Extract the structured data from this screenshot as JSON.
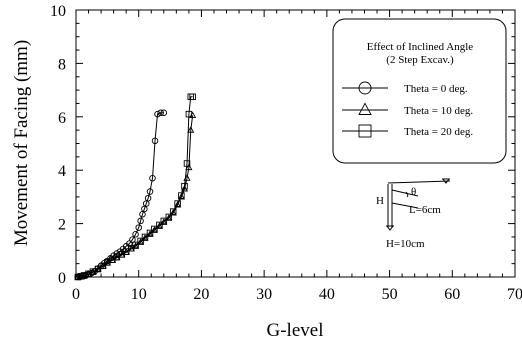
{
  "chart_data": {
    "type": "line",
    "xlabel": "G-level",
    "ylabel": "Movement of Facing (mm)",
    "xlim": [
      0,
      70
    ],
    "ylim": [
      0,
      10
    ],
    "xticks": [
      "0",
      "10",
      "20",
      "30",
      "40",
      "50",
      "60",
      "70"
    ],
    "yticks": [
      "0",
      "2",
      "4",
      "6",
      "8",
      "10"
    ],
    "legend": {
      "title_line1": "Effect of Inclined Angle",
      "title_line2": "(2 Step Excav.)",
      "position": "top-right"
    },
    "series": [
      {
        "name": "Theta = 0 deg.",
        "marker": "circle",
        "x": [
          0.3,
          0.6,
          0.9,
          1.2,
          1.5,
          2.0,
          2.5,
          3.0,
          3.5,
          4.0,
          4.5,
          5.0,
          5.5,
          6.0,
          6.5,
          7.0,
          7.5,
          8.0,
          8.5,
          9.0,
          9.5,
          10.0,
          10.3,
          10.6,
          10.9,
          11.2,
          11.5,
          11.8,
          12.2,
          12.6,
          13.0,
          13.5,
          14.0
        ],
        "y": [
          0.0,
          0.0,
          0.02,
          0.03,
          0.05,
          0.1,
          0.15,
          0.22,
          0.32,
          0.42,
          0.52,
          0.6,
          0.7,
          0.8,
          0.88,
          0.95,
          1.05,
          1.15,
          1.25,
          1.4,
          1.6,
          1.85,
          2.1,
          2.35,
          2.55,
          2.75,
          2.95,
          3.2,
          3.7,
          5.1,
          6.1,
          6.15,
          6.15
        ]
      },
      {
        "name": "Theta = 10 deg.",
        "marker": "triangle",
        "x": [
          0.3,
          0.8,
          1.3,
          2.0,
          2.7,
          3.5,
          4.3,
          5.0,
          5.8,
          6.5,
          7.3,
          8.0,
          8.8,
          9.5,
          10.3,
          11.0,
          11.8,
          12.5,
          13.3,
          14.0,
          14.8,
          15.5,
          16.2,
          16.8,
          17.3,
          17.7,
          18.0,
          18.3,
          18.6
        ],
        "y": [
          0.0,
          0.02,
          0.05,
          0.1,
          0.18,
          0.28,
          0.4,
          0.52,
          0.62,
          0.72,
          0.82,
          0.92,
          1.05,
          1.15,
          1.3,
          1.45,
          1.6,
          1.75,
          1.9,
          2.05,
          2.2,
          2.4,
          2.7,
          3.0,
          3.3,
          3.7,
          4.1,
          5.5,
          6.05
        ]
      },
      {
        "name": "Theta = 20 deg.",
        "marker": "square",
        "x": [
          0.3,
          0.8,
          1.3,
          2.0,
          2.7,
          3.5,
          4.3,
          5.0,
          5.8,
          6.5,
          7.3,
          8.0,
          8.8,
          9.5,
          10.3,
          11.0,
          11.8,
          12.5,
          13.3,
          14.0,
          14.8,
          15.5,
          16.2,
          16.8,
          17.3,
          17.7,
          18.0,
          18.3,
          18.6
        ],
        "y": [
          0.0,
          0.03,
          0.06,
          0.12,
          0.2,
          0.3,
          0.42,
          0.55,
          0.65,
          0.75,
          0.85,
          0.95,
          1.08,
          1.2,
          1.35,
          1.5,
          1.65,
          1.8,
          1.95,
          2.1,
          2.25,
          2.45,
          2.75,
          3.05,
          3.4,
          4.25,
          6.1,
          6.75,
          6.75
        ]
      }
    ],
    "inset": {
      "h_label": "H",
      "theta_label": "θ",
      "l_label": "L=6cm",
      "bottom_label": "H=10cm"
    }
  }
}
